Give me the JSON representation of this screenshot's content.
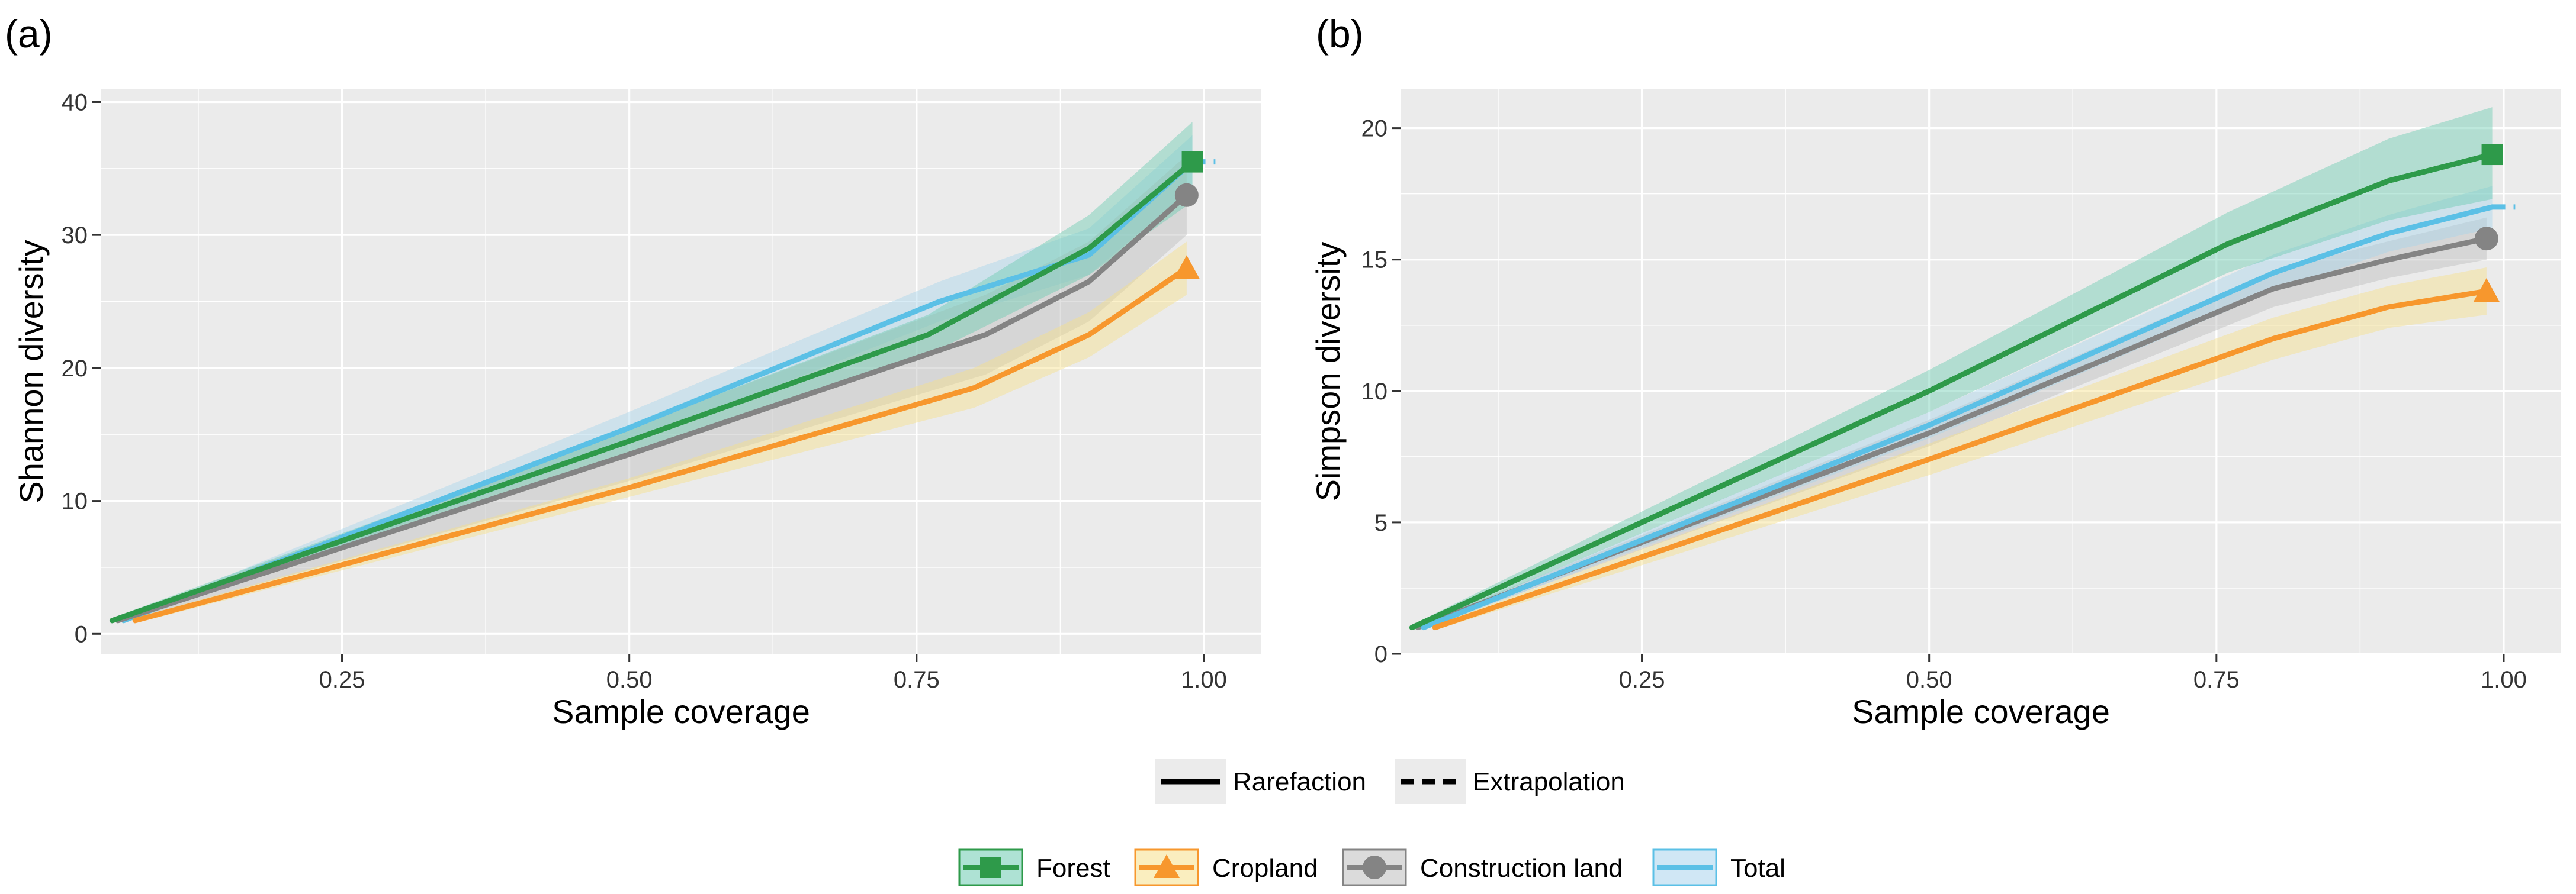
{
  "legend": {
    "method": [
      {
        "key": "rarefaction",
        "label": "Rarefaction",
        "dash": "solid"
      },
      {
        "key": "extrapolation",
        "label": "Extrapolation",
        "dash": "dashed"
      }
    ],
    "groups": [
      {
        "key": "forest",
        "label": "Forest",
        "marker": "square"
      },
      {
        "key": "cropland",
        "label": "Cropland",
        "marker": "triangle"
      },
      {
        "key": "construction",
        "label": "Construction land",
        "marker": "circle"
      },
      {
        "key": "total",
        "label": "Total",
        "marker": "none"
      }
    ]
  },
  "colors": {
    "forest": "#2e9a4a",
    "cropland": "#f7972d",
    "construction": "#848484",
    "total": "#5bc0e6",
    "forest_band": "#6ccbb1",
    "cropland_band": "#f6e08a",
    "construction_band": "#bdbdbd",
    "total_band": "#a9d4ec",
    "panel_bg": "#ebebeb",
    "grid": "#ffffff"
  },
  "chart_data": [
    {
      "panel": "(a)",
      "type": "line",
      "xlabel": "Sample coverage",
      "ylabel": "Shannon diversity",
      "xlim": [
        0.04,
        1.05
      ],
      "ylim": [
        -1.5,
        41
      ],
      "xticks": [
        0.25,
        0.5,
        0.75,
        1.0
      ],
      "xtick_labels": [
        "0.25",
        "0.50",
        "0.75",
        "1.00"
      ],
      "yticks": [
        0,
        10,
        20,
        30,
        40
      ],
      "ytick_labels": [
        "0",
        "10",
        "20",
        "30",
        "40"
      ],
      "series": [
        {
          "key": "total",
          "name": "Total",
          "x": [
            0.06,
            0.5,
            0.77,
            0.9,
            0.99
          ],
          "y": [
            1,
            15.5,
            25,
            28.5,
            35.5
          ],
          "ext": [
            [
              0.99,
              35.5
            ],
            [
              1.01,
              35.5
            ]
          ],
          "lo": [
            0.8,
            14.3,
            23.5,
            27.0,
            33.5
          ],
          "hi": [
            1.2,
            16.7,
            26.5,
            30.5,
            37.5
          ]
        },
        {
          "key": "construction",
          "name": "Construction land",
          "x": [
            0.055,
            0.5,
            0.81,
            0.9,
            0.985
          ],
          "y": [
            1,
            13.5,
            22.5,
            26.5,
            33
          ],
          "lo": [
            0.8,
            11.5,
            19.5,
            23.5,
            30
          ],
          "hi": [
            1.2,
            15.5,
            25.5,
            29.5,
            36
          ]
        },
        {
          "key": "forest",
          "name": "Forest",
          "x": [
            0.05,
            0.5,
            0.76,
            0.9,
            0.99
          ],
          "y": [
            1,
            14.5,
            22.5,
            29,
            35.5
          ],
          "lo": [
            0.8,
            13.5,
            21,
            27,
            32.5
          ],
          "hi": [
            1.2,
            15.5,
            24,
            31.5,
            38.5
          ]
        },
        {
          "key": "cropland",
          "name": "Cropland",
          "x": [
            0.07,
            0.5,
            0.8,
            0.9,
            0.985
          ],
          "y": [
            1,
            11,
            18.5,
            22.5,
            27.5
          ],
          "lo": [
            0.8,
            10.3,
            17,
            20.8,
            25.5
          ],
          "hi": [
            1.2,
            11.7,
            20,
            24.2,
            29.5
          ]
        }
      ],
      "endpoints": [
        {
          "key": "forest",
          "x": 0.99,
          "y": 35.5
        },
        {
          "key": "construction",
          "x": 0.985,
          "y": 33
        },
        {
          "key": "cropland",
          "x": 0.985,
          "y": 27.5
        }
      ]
    },
    {
      "panel": "(b)",
      "type": "line",
      "xlabel": "Sample coverage",
      "ylabel": "Simpson diversity",
      "xlim": [
        0.04,
        1.05
      ],
      "ylim": [
        0,
        21.5
      ],
      "xticks": [
        0.25,
        0.5,
        0.75,
        1.0
      ],
      "xtick_labels": [
        "0.25",
        "0.50",
        "0.75",
        "1.00"
      ],
      "yticks": [
        0,
        5,
        10,
        15,
        20
      ],
      "ytick_labels": [
        "0",
        "5",
        "10",
        "15",
        "20"
      ],
      "series": [
        {
          "key": "construction",
          "name": "Construction land",
          "x": [
            0.055,
            0.5,
            0.8,
            0.9,
            0.985
          ],
          "y": [
            1,
            8.4,
            13.9,
            15,
            15.8
          ],
          "lo": [
            0.9,
            7.9,
            13.2,
            14.3,
            15
          ],
          "hi": [
            1.1,
            8.9,
            14.6,
            15.7,
            16.6
          ]
        },
        {
          "key": "total",
          "name": "Total",
          "x": [
            0.06,
            0.5,
            0.8,
            0.9,
            0.99
          ],
          "y": [
            1,
            8.7,
            14.5,
            16,
            17
          ],
          "ext": [
            [
              0.99,
              17
            ],
            [
              1.01,
              17
            ]
          ],
          "lo": [
            0.9,
            8.2,
            13.8,
            15.3,
            16.2
          ],
          "hi": [
            1.1,
            9.2,
            15.2,
            16.7,
            17.8
          ]
        },
        {
          "key": "cropland",
          "name": "Cropland",
          "x": [
            0.07,
            0.5,
            0.8,
            0.9,
            0.985
          ],
          "y": [
            1,
            7.4,
            12,
            13.2,
            13.8
          ],
          "lo": [
            0.9,
            6.8,
            11.2,
            12.4,
            12.9
          ],
          "hi": [
            1.1,
            8,
            12.8,
            14,
            14.7
          ]
        },
        {
          "key": "forest",
          "name": "Forest",
          "x": [
            0.05,
            0.5,
            0.76,
            0.9,
            0.99
          ],
          "y": [
            1,
            10,
            15.6,
            18,
            19
          ]
        },
        {
          "key": "forest",
          "name": "Forest",
          "x": [
            0.05,
            0.5,
            0.76,
            0.9,
            0.99
          ],
          "y": [
            1,
            10,
            15.6,
            18,
            19
          ],
          "lo": [
            0.9,
            9.2,
            14.5,
            16.5,
            17.3
          ],
          "hi": [
            1.1,
            10.8,
            16.8,
            19.6,
            20.8
          ]
        }
      ],
      "endpoints": [
        {
          "key": "forest",
          "x": 0.99,
          "y": 19
        },
        {
          "key": "construction",
          "x": 0.985,
          "y": 15.8
        },
        {
          "key": "cropland",
          "x": 0.985,
          "y": 13.8
        }
      ]
    }
  ]
}
